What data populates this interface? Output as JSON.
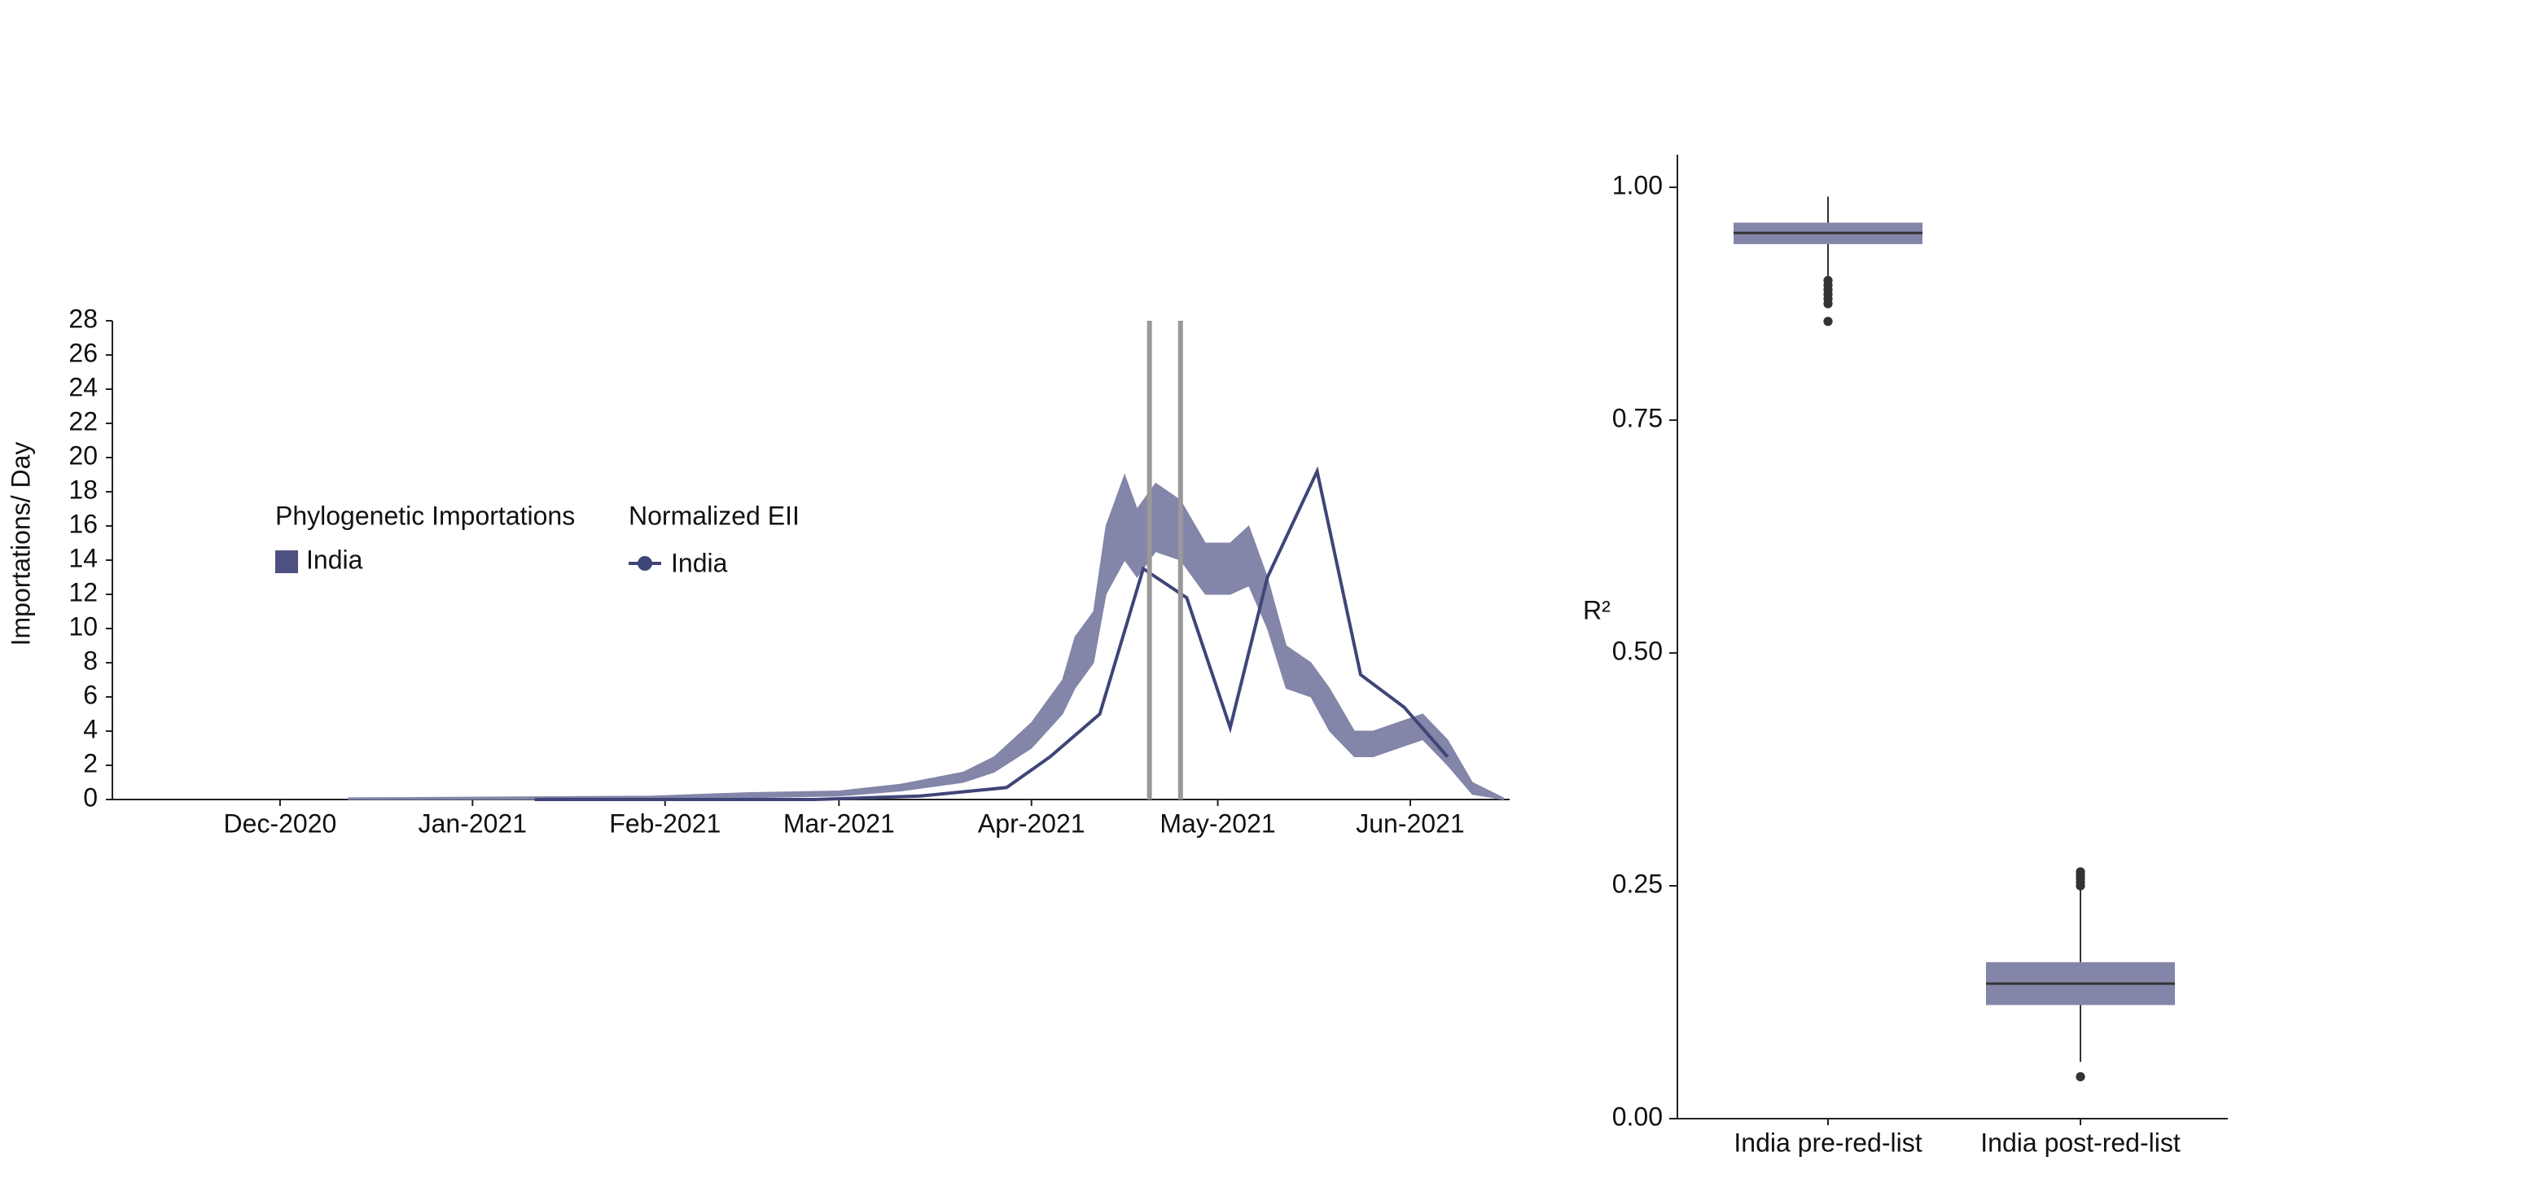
{
  "chart_data": [
    {
      "type": "band-line",
      "y_label": "Importations/ Day",
      "xlim": [
        -27,
        198
      ],
      "xticks": [
        {
          "value": 0,
          "label": "Dec-2020"
        },
        {
          "value": 31,
          "label": "Jan-2021"
        },
        {
          "value": 62,
          "label": "Feb-2021"
        },
        {
          "value": 90,
          "label": "Mar-2021"
        },
        {
          "value": 121,
          "label": "Apr-2021"
        },
        {
          "value": 151,
          "label": "May-2021"
        },
        {
          "value": 182,
          "label": "Jun-2021"
        }
      ],
      "ylim": [
        0,
        28
      ],
      "yticks": [
        0,
        2,
        4,
        6,
        8,
        10,
        12,
        14,
        16,
        18,
        20,
        22,
        24,
        26,
        28
      ],
      "vlines": {
        "values": [
          140,
          145
        ],
        "color": "#999999"
      },
      "series": [
        {
          "legend_title": "Phylogenetic Importations",
          "name": "India",
          "kind": "band",
          "color": "#8385a9",
          "legend_color": "#4d5080",
          "x": [
            11,
            60,
            75,
            90,
            100,
            110,
            115,
            121,
            126,
            128,
            131,
            133,
            136,
            138,
            141,
            145,
            149,
            153,
            156,
            159,
            162,
            166,
            169,
            173,
            176,
            180,
            184,
            188,
            192,
            197
          ],
          "lower": [
            0,
            0,
            0.1,
            0.2,
            0.5,
            1.0,
            1.6,
            3.0,
            5.0,
            6.5,
            8,
            12,
            14,
            13,
            14.5,
            14,
            12,
            12,
            12.5,
            10,
            6.5,
            6,
            4,
            2.5,
            2.5,
            3,
            3.5,
            2,
            0.3,
            0
          ],
          "upper": [
            0.1,
            0.2,
            0.4,
            0.5,
            0.9,
            1.6,
            2.5,
            4.5,
            7.0,
            9.5,
            11,
            16,
            19,
            17,
            18.5,
            17.5,
            15,
            15,
            16,
            13,
            9,
            8,
            6.5,
            4,
            4,
            4.5,
            5,
            3.5,
            1,
            0.1
          ]
        },
        {
          "legend_title": "Normalized EII",
          "name": "India",
          "kind": "line",
          "color": "#3f4577",
          "x": [
            41,
            86,
            103,
            117,
            124,
            132,
            139,
            146,
            153,
            159,
            167,
            174,
            181,
            188
          ],
          "values": [
            0,
            0,
            0.2,
            0.7,
            2.5,
            5,
            13.5,
            11.8,
            4.2,
            13,
            19.2,
            7.3,
            5.4,
            2.5
          ]
        }
      ]
    },
    {
      "type": "box",
      "y_label": "R²",
      "ylim": [
        0,
        1.035
      ],
      "yticks": [
        {
          "value": 0,
          "label": "0.00"
        },
        {
          "value": 0.25,
          "label": "0.25"
        },
        {
          "value": 0.5,
          "label": "0.50"
        },
        {
          "value": 0.75,
          "label": "0.75"
        },
        {
          "value": 1,
          "label": "1.00"
        }
      ],
      "color": "#8385a9",
      "categories": [
        "India pre-red-list",
        "India post-red-list"
      ],
      "boxes": [
        {
          "min": 0.904,
          "q1": 0.939,
          "median": 0.951,
          "q3": 0.962,
          "max": 0.99,
          "outliers": [
            0.9,
            0.895,
            0.89,
            0.885,
            0.88,
            0.875,
            0.856
          ]
        },
        {
          "min": 0.061,
          "q1": 0.122,
          "median": 0.145,
          "q3": 0.168,
          "max": 0.248,
          "outliers": [
            0.25,
            0.254,
            0.258,
            0.262,
            0.265,
            0.045
          ]
        }
      ]
    }
  ]
}
